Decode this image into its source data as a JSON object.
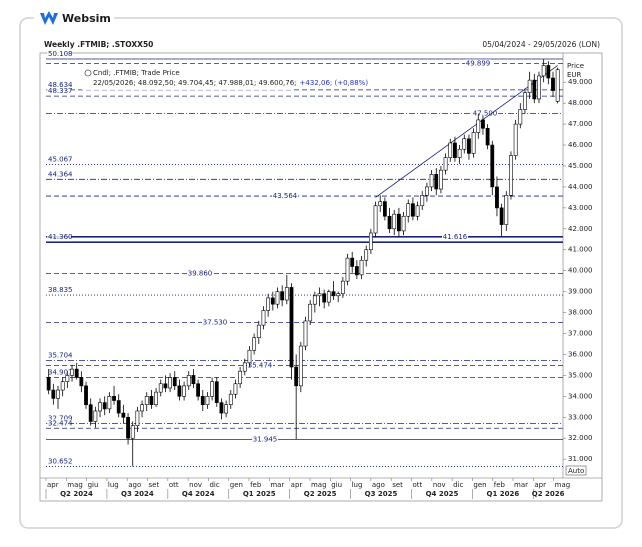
{
  "brand": "Websim",
  "chart_data": {
    "type": "candlestick",
    "title": "Weekly .FTMIB; .STOXX50",
    "date_range": "05/04/2024 - 29/05/2026 (LON)",
    "legend": {
      "series": "Cndl; .FTMIB; Trade Price",
      "ohlc": "22/05/2026; 48.092,50; 49.704,45; 47.988,01; 49.600,76;",
      "change": "+432,06; (+0,88%)"
    },
    "y_axis_label": [
      "Price",
      "EUR"
    ],
    "scale_mode": "Auto",
    "up_color": "#ffffff",
    "down_color": "#000000",
    "line_color": "#1a237e",
    "months": [
      "apr",
      "mag",
      "giu",
      "lug",
      "ago",
      "set",
      "ott",
      "nov",
      "dic",
      "gen",
      "feb",
      "mar",
      "apr",
      "mag",
      "giu",
      "lug",
      "ago",
      "set",
      "ott",
      "nov",
      "dic",
      "gen",
      "feb",
      "mar",
      "apr",
      "mag"
    ],
    "quarters": [
      "Q2 2024",
      "Q3 2024",
      "Q4 2024",
      "Q1 2025",
      "Q2 2025",
      "Q3 2025",
      "Q4 2025",
      "Q1 2026",
      "Q2 2026"
    ],
    "ylim": [
      30.1,
      50.3
    ],
    "yticks": [
      {
        "value": 31,
        "label": "31.000"
      },
      {
        "value": 32,
        "label": "32.000"
      },
      {
        "value": 33,
        "label": "33.000"
      },
      {
        "value": 34,
        "label": "34.000"
      },
      {
        "value": 35,
        "label": "35.000"
      },
      {
        "value": 36,
        "label": "36.000"
      },
      {
        "value": 37,
        "label": "37.000"
      },
      {
        "value": 38,
        "label": "38.000"
      },
      {
        "value": 39,
        "label": "39.000"
      },
      {
        "value": 40,
        "label": "40.000"
      },
      {
        "value": 41,
        "label": "41.000"
      },
      {
        "value": 42,
        "label": "42.000"
      },
      {
        "value": 43,
        "label": "43.000"
      },
      {
        "value": 44,
        "label": "44.000"
      },
      {
        "value": 45,
        "label": "45.000"
      },
      {
        "value": 46,
        "label": "46.000"
      },
      {
        "value": 47,
        "label": "47.000"
      },
      {
        "value": 48,
        "label": "48.000"
      },
      {
        "value": 49,
        "label": "49.000"
      }
    ],
    "levels": [
      {
        "value": 50.108,
        "style": "solid",
        "placement": "left"
      },
      {
        "value": 49.899,
        "style": "dash",
        "placement": "inline"
      },
      {
        "value": 48.634,
        "style": "dash",
        "placement": "left"
      },
      {
        "value": 48.337,
        "style": "dash",
        "placement": "left"
      },
      {
        "value": 47.5,
        "label": "47.500",
        "style": "dashdot",
        "placement": "inline"
      },
      {
        "value": 45.067,
        "style": "dot",
        "placement": "left"
      },
      {
        "value": 44.364,
        "style": "dashdot",
        "placement": "left"
      },
      {
        "value": 43.564,
        "style": "dash",
        "placement": "inline"
      },
      {
        "value": 41.616,
        "style": "thick",
        "placement": "inline"
      },
      {
        "value": 41.36,
        "label": "41.360",
        "style": "thick",
        "placement": "left"
      },
      {
        "value": 39.86,
        "label": "39.860",
        "style": "dash",
        "placement": "inline"
      },
      {
        "value": 38.835,
        "style": "dot",
        "placement": "left"
      },
      {
        "value": 37.53,
        "label": "37.530",
        "style": "dash",
        "placement": "inline"
      },
      {
        "value": 35.704,
        "style": "dashdot",
        "placement": "left"
      },
      {
        "value": 35.474,
        "style": "dash",
        "placement": "inline"
      },
      {
        "value": 34.907,
        "style": "dash",
        "placement": "left"
      },
      {
        "value": 32.709,
        "style": "dashdot",
        "placement": "left"
      },
      {
        "value": 32.474,
        "style": "dash",
        "placement": "left"
      },
      {
        "value": 31.945,
        "style": "solid",
        "placement": "inline"
      },
      {
        "value": 30.652,
        "style": "dot",
        "placement": "left"
      }
    ],
    "trendline": {
      "x": [
        70,
        109
      ],
      "values": [
        43.5,
        49.8
      ]
    },
    "candles": [
      [
        34.9,
        35.3,
        34.1,
        34.3
      ],
      [
        34.3,
        34.6,
        33.6,
        33.9
      ],
      [
        33.9,
        34.5,
        33.4,
        34.3
      ],
      [
        34.3,
        34.9,
        34.0,
        34.7
      ],
      [
        34.7,
        35.2,
        34.4,
        35.0
      ],
      [
        35.0,
        35.5,
        34.7,
        35.3
      ],
      [
        35.3,
        35.6,
        34.8,
        34.9
      ],
      [
        34.9,
        35.2,
        34.2,
        34.5
      ],
      [
        34.5,
        34.7,
        33.4,
        33.6
      ],
      [
        33.6,
        33.9,
        32.6,
        32.8
      ],
      [
        32.8,
        33.5,
        32.5,
        33.3
      ],
      [
        33.3,
        33.9,
        33.0,
        33.7
      ],
      [
        33.7,
        34.0,
        33.1,
        33.4
      ],
      [
        33.4,
        34.2,
        33.2,
        34.0
      ],
      [
        34.0,
        34.5,
        33.6,
        33.8
      ],
      [
        33.8,
        34.1,
        33.0,
        33.2
      ],
      [
        33.2,
        33.6,
        32.7,
        33.0
      ],
      [
        33.0,
        33.2,
        31.7,
        32.0
      ],
      [
        32.0,
        32.8,
        30.65,
        32.6
      ],
      [
        32.6,
        33.5,
        32.3,
        33.3
      ],
      [
        33.3,
        33.8,
        33.0,
        33.6
      ],
      [
        33.6,
        34.2,
        33.3,
        34.0
      ],
      [
        34.0,
        34.3,
        33.4,
        33.6
      ],
      [
        33.6,
        34.4,
        33.5,
        34.2
      ],
      [
        34.2,
        34.8,
        34.0,
        34.6
      ],
      [
        34.6,
        35.0,
        34.2,
        34.4
      ],
      [
        34.4,
        35.1,
        34.2,
        34.9
      ],
      [
        34.9,
        35.2,
        34.3,
        34.5
      ],
      [
        34.5,
        34.8,
        33.8,
        34.0
      ],
      [
        34.0,
        34.7,
        33.8,
        34.5
      ],
      [
        34.5,
        35.2,
        34.3,
        35.0
      ],
      [
        35.0,
        35.3,
        34.4,
        34.6
      ],
      [
        34.6,
        34.8,
        33.8,
        34.0
      ],
      [
        34.0,
        34.3,
        33.3,
        33.6
      ],
      [
        33.6,
        34.2,
        33.4,
        34.0
      ],
      [
        34.0,
        34.9,
        33.8,
        34.7
      ],
      [
        34.7,
        34.9,
        33.5,
        33.7
      ],
      [
        33.7,
        33.9,
        32.9,
        33.2
      ],
      [
        33.2,
        33.8,
        33.0,
        33.6
      ],
      [
        33.6,
        34.3,
        33.4,
        34.1
      ],
      [
        34.1,
        34.8,
        33.9,
        34.6
      ],
      [
        34.6,
        35.4,
        34.4,
        35.2
      ],
      [
        35.2,
        35.8,
        35.0,
        35.6
      ],
      [
        35.6,
        36.4,
        35.4,
        36.2
      ],
      [
        36.2,
        37.0,
        36.0,
        36.8
      ],
      [
        36.8,
        37.6,
        36.5,
        37.4
      ],
      [
        37.4,
        38.3,
        37.2,
        38.1
      ],
      [
        38.1,
        38.9,
        37.8,
        38.7
      ],
      [
        38.7,
        39.0,
        38.1,
        38.4
      ],
      [
        38.4,
        39.2,
        38.2,
        39.0
      ],
      [
        39.0,
        39.3,
        38.3,
        38.6
      ],
      [
        38.6,
        39.8,
        38.4,
        39.2
      ],
      [
        39.2,
        39.4,
        34.8,
        35.4
      ],
      [
        35.4,
        36.0,
        31.95,
        34.5
      ],
      [
        34.5,
        36.6,
        34.2,
        36.4
      ],
      [
        36.4,
        37.8,
        36.2,
        37.6
      ],
      [
        37.6,
        38.6,
        37.4,
        38.4
      ],
      [
        38.4,
        39.0,
        38.0,
        38.8
      ],
      [
        38.8,
        39.2,
        38.3,
        38.9
      ],
      [
        38.9,
        39.1,
        38.2,
        38.5
      ],
      [
        38.5,
        39.1,
        38.3,
        39.0
      ],
      [
        39.0,
        39.5,
        38.6,
        38.8
      ],
      [
        38.8,
        39.0,
        38.5,
        38.9
      ],
      [
        38.9,
        39.7,
        38.7,
        39.5
      ],
      [
        39.5,
        40.8,
        39.3,
        40.6
      ],
      [
        40.6,
        40.9,
        39.9,
        40.2
      ],
      [
        40.2,
        40.5,
        39.6,
        39.8
      ],
      [
        39.8,
        40.7,
        39.6,
        40.5
      ],
      [
        40.5,
        41.2,
        40.2,
        41.0
      ],
      [
        41.0,
        42.0,
        40.8,
        41.8
      ],
      [
        41.8,
        43.3,
        41.6,
        43.1
      ],
      [
        43.1,
        43.6,
        42.8,
        43.3
      ],
      [
        43.3,
        43.5,
        42.4,
        42.6
      ],
      [
        42.6,
        43.0,
        41.8,
        42.0
      ],
      [
        42.0,
        42.9,
        41.7,
        42.7
      ],
      [
        42.7,
        43.0,
        41.6,
        41.9
      ],
      [
        41.9,
        42.8,
        41.7,
        42.6
      ],
      [
        42.6,
        43.4,
        42.3,
        43.2
      ],
      [
        43.2,
        43.5,
        42.4,
        42.6
      ],
      [
        42.6,
        43.3,
        42.4,
        43.1
      ],
      [
        43.1,
        43.8,
        42.9,
        43.6
      ],
      [
        43.6,
        44.2,
        43.3,
        44.0
      ],
      [
        44.0,
        44.8,
        43.8,
        44.6
      ],
      [
        44.6,
        44.9,
        43.6,
        43.9
      ],
      [
        43.9,
        45.0,
        43.7,
        44.8
      ],
      [
        44.8,
        45.6,
        44.6,
        45.4
      ],
      [
        45.4,
        46.3,
        45.2,
        46.1
      ],
      [
        46.1,
        46.4,
        45.2,
        45.4
      ],
      [
        45.4,
        46.0,
        45.1,
        45.8
      ],
      [
        45.8,
        46.5,
        45.6,
        46.3
      ],
      [
        46.3,
        46.5,
        45.3,
        45.6
      ],
      [
        45.6,
        46.8,
        45.4,
        46.6
      ],
      [
        46.6,
        47.5,
        46.3,
        47.2
      ],
      [
        47.2,
        47.4,
        46.5,
        46.8
      ],
      [
        46.8,
        47.0,
        45.8,
        46.0
      ],
      [
        46.0,
        46.2,
        43.6,
        44.0
      ],
      [
        44.0,
        44.5,
        42.6,
        43.0
      ],
      [
        43.0,
        43.2,
        41.6,
        42.2
      ],
      [
        42.2,
        43.8,
        41.9,
        43.6
      ],
      [
        43.6,
        45.7,
        43.4,
        45.5
      ],
      [
        45.5,
        47.2,
        45.3,
        47.0
      ],
      [
        47.0,
        48.0,
        46.8,
        47.7
      ],
      [
        47.7,
        48.7,
        47.5,
        48.5
      ],
      [
        48.5,
        49.5,
        48.2,
        49.1
      ],
      [
        49.1,
        49.4,
        48.0,
        48.2
      ],
      [
        48.2,
        49.5,
        48.0,
        49.3
      ],
      [
        49.3,
        50.1,
        49.0,
        49.8
      ],
      [
        49.8,
        50.0,
        48.9,
        49.2
      ],
      [
        49.2,
        49.5,
        48.3,
        48.6
      ],
      [
        48.09,
        49.7,
        47.99,
        49.6
      ]
    ]
  }
}
